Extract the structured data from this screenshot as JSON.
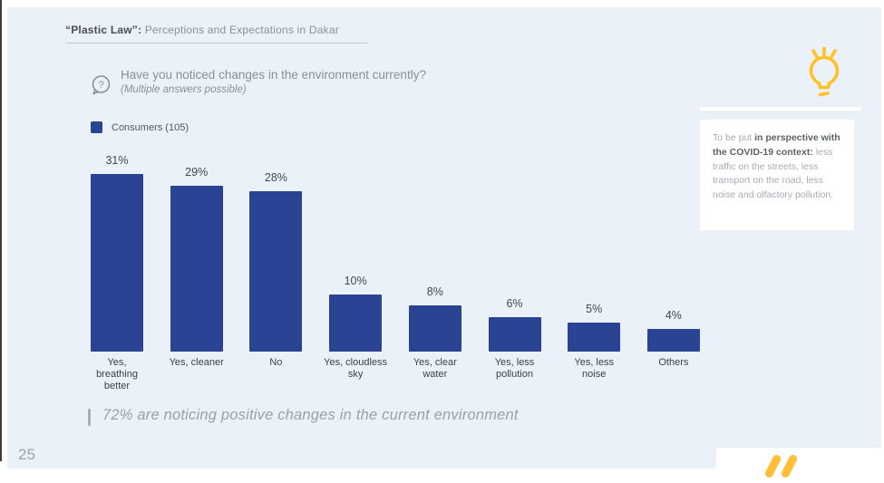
{
  "slide": {
    "header": {
      "title_bold": "“Plastic Law”:",
      "title_rest": " Perceptions and Expectations in Dakar"
    },
    "question": {
      "line1": "Have you noticed changes in the environment currently?",
      "line2": "(Multiple answers possible)"
    },
    "legend": {
      "label": "Consumers (105)"
    },
    "callout": {
      "text_prefix": "To be put ",
      "text_bold": "in perspective with the COVID-19 context:",
      "text_suffix": " less traffic on the streets, less transport on the road, less noise and olfactory pollution."
    },
    "takeaway": "72% are noticing positive changes in the current environment",
    "page_number": "25"
  },
  "chart_data": {
    "type": "bar",
    "title": "Have you noticed changes in the environment currently? (Multiple answers possible)",
    "series_name": "Consumers (105)",
    "categories": [
      "Yes,\nbreathing\nbetter",
      "Yes, cleaner",
      "No",
      "Yes, cloudless\nsky",
      "Yes, clear\nwater",
      "Yes, less\npollution",
      "Yes, less\nnoise",
      "Others"
    ],
    "values": [
      31,
      29,
      28,
      10,
      8,
      6,
      5,
      4
    ],
    "value_labels": [
      "31%",
      "29%",
      "28%",
      "10%",
      "8%",
      "6%",
      "5%",
      "4%"
    ],
    "xlabel": "",
    "ylabel": "",
    "ylim": [
      0,
      31
    ],
    "grid": false,
    "legend_position": "top-left",
    "bar_color": "#2A4392"
  },
  "theme": {
    "slide_bg": "#EAF1F9",
    "bar_blue": "#2A4392",
    "accent_yellow": "#FFC226"
  }
}
